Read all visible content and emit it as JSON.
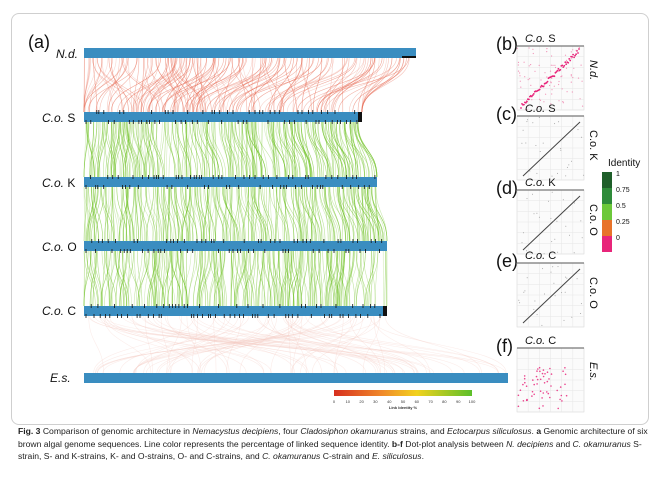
{
  "figure": {
    "panel_a_letter": "(a)",
    "genomes": [
      {
        "id": "nd",
        "label_italic": "N.d.",
        "label_plain": ""
      },
      {
        "id": "cos",
        "label_italic": "C.o.",
        "label_plain": "S"
      },
      {
        "id": "cok",
        "label_italic": "C.o.",
        "label_plain": "K"
      },
      {
        "id": "coo",
        "label_italic": "C.o.",
        "label_plain": "O"
      },
      {
        "id": "coc",
        "label_italic": "C.o.",
        "label_plain": "C"
      },
      {
        "id": "es",
        "label_italic": "E.s.",
        "label_plain": ""
      }
    ],
    "link_scale": {
      "ticks": [
        "0",
        "10",
        "20",
        "30",
        "40",
        "50",
        "60",
        "70",
        "80",
        "90",
        "100"
      ],
      "label": "Link Identity %"
    },
    "dotplots": [
      {
        "letter": "(b)",
        "top_italic": "C.o.",
        "top_plain": "S",
        "side_text": "N.d.",
        "side_italic": true,
        "pattern": "pink-diagonal"
      },
      {
        "letter": "(c)",
        "top_italic": "C.o.",
        "top_plain": "S",
        "side_text": "C.o. K",
        "side_italic": false,
        "pattern": "gray-diagonal"
      },
      {
        "letter": "(d)",
        "top_italic": "C.o.",
        "top_plain": "K",
        "side_text": "C.o. O",
        "side_italic": false,
        "pattern": "gray-diagonal"
      },
      {
        "letter": "(e)",
        "top_italic": "C.o.",
        "top_plain": "C",
        "side_text": "C.o. O",
        "side_italic": false,
        "pattern": "gray-diagonal"
      },
      {
        "letter": "(f)",
        "top_italic": "C.o.",
        "top_plain": "C",
        "side_text": "E.s.",
        "side_italic": true,
        "pattern": "pink-scatter"
      }
    ],
    "identity_legend": {
      "title": "Identity",
      "ticks": [
        "1",
        "0.75",
        "0.5",
        "0.25",
        "0"
      ],
      "colors": [
        "#1f5f2a",
        "#2e8b3a",
        "#6cc83a",
        "#e8732a",
        "#e8257a"
      ]
    },
    "colors": {
      "chromosome_bar": "#3a8dc0",
      "link_red": "#e8705a",
      "link_green": "#6cc020",
      "link_faint": "#f3c9c0"
    }
  },
  "caption": {
    "fig_label": "Fig. 3",
    "text_1": " Comparison of genomic architecture in ",
    "sp_1": "Nemacystus decipiens",
    "text_2": ", four ",
    "sp_2": "Cladosiphon okamuranus",
    "text_3": " strains, and ",
    "sp_3": "Ectocarpus siliculosus",
    "text_4": ". ",
    "a_label": "a",
    "text_5": " Genomic architecture of six brown algal genome sequences. Line color represents the percentage of linked sequence identity. ",
    "bf_label": "b-f",
    "text_6": " Dot-plot analysis between ",
    "sp_4": "N. decipiens",
    "text_7": " and ",
    "sp_5": "C. okamuranus",
    "text_8": " S-strain, S- and K-strains, K- and O-strains, O- and C-strains, and ",
    "sp_6": "C. okamuranus",
    "text_9": " C-strain and ",
    "sp_7": "E. siliculosus",
    "text_10": "."
  }
}
